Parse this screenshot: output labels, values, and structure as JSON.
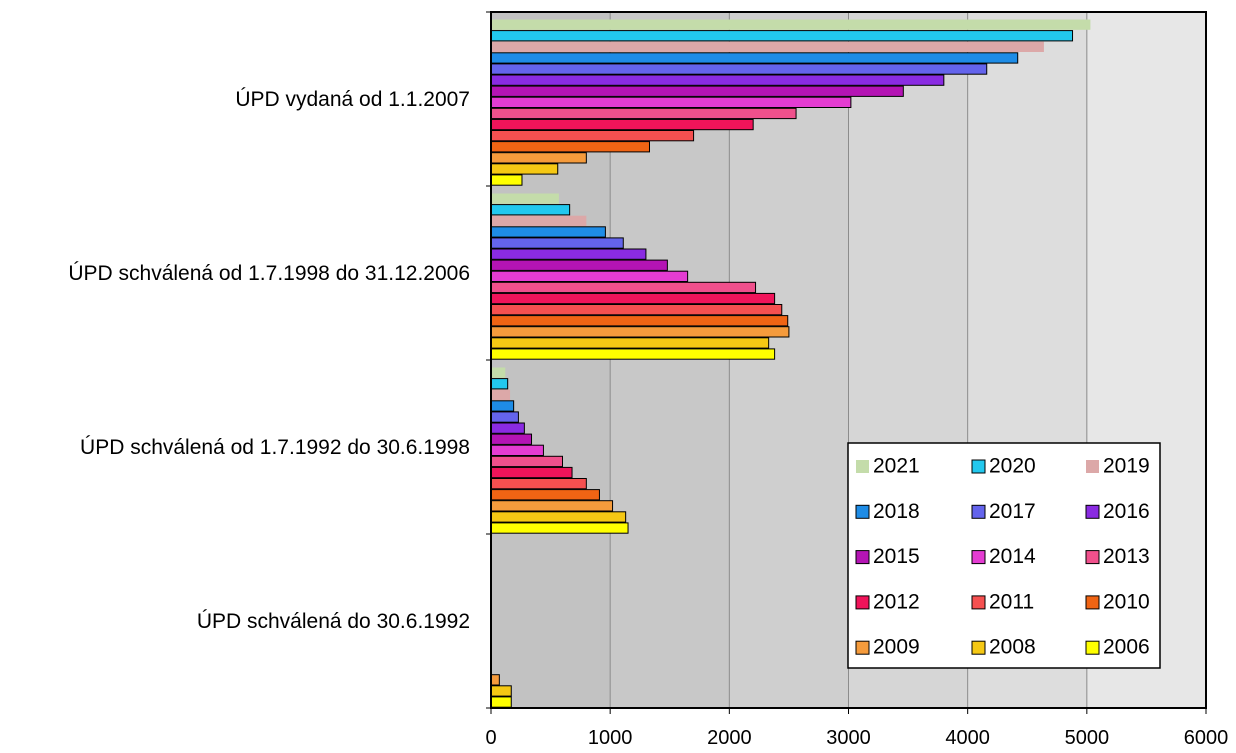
{
  "chart_data": {
    "type": "bar",
    "orientation": "horizontal",
    "categories": [
      "ÚPD vydaná od 1.1.2007",
      "ÚPD schválená od 1.7.1998 do 31.12.2006",
      "ÚPD schválená od 1.7.1992 do 30.6.1998",
      "ÚPD schválená do 30.6.1992"
    ],
    "xlim": [
      0,
      6000
    ],
    "x_ticks": [
      "0",
      "1000",
      "2000",
      "3000",
      "4000",
      "5000",
      "6000"
    ],
    "grid": "vertical",
    "legend_position": "bottom-right",
    "series": [
      {
        "name": "2021",
        "color": "#c4dcaa",
        "outline": false,
        "values": [
          5030,
          570,
          120,
          0
        ]
      },
      {
        "name": "2020",
        "color": "#22c8ee",
        "outline": true,
        "values": [
          4880,
          660,
          140,
          0
        ]
      },
      {
        "name": "2019",
        "color": "#dca8a8",
        "outline": false,
        "values": [
          4640,
          800,
          160,
          0
        ]
      },
      {
        "name": "2018",
        "color": "#1e8ce6",
        "outline": true,
        "values": [
          4420,
          960,
          190,
          0
        ]
      },
      {
        "name": "2017",
        "color": "#6464ec",
        "outline": true,
        "values": [
          4160,
          1110,
          230,
          0
        ]
      },
      {
        "name": "2016",
        "color": "#8a2be2",
        "outline": true,
        "values": [
          3800,
          1300,
          280,
          0
        ]
      },
      {
        "name": "2015",
        "color": "#b414b4",
        "outline": true,
        "values": [
          3460,
          1480,
          340,
          0
        ]
      },
      {
        "name": "2014",
        "color": "#e43cd2",
        "outline": true,
        "values": [
          3020,
          1650,
          440,
          0
        ]
      },
      {
        "name": "2013",
        "color": "#f0508c",
        "outline": true,
        "values": [
          2560,
          2220,
          600,
          0
        ]
      },
      {
        "name": "2012",
        "color": "#f0145a",
        "outline": true,
        "values": [
          2200,
          2380,
          680,
          0
        ]
      },
      {
        "name": "2011",
        "color": "#f55050",
        "outline": true,
        "values": [
          1700,
          2440,
          800,
          0
        ]
      },
      {
        "name": "2010",
        "color": "#f06414",
        "outline": true,
        "values": [
          1330,
          2490,
          910,
          0
        ]
      },
      {
        "name": "2009",
        "color": "#f59b3c",
        "outline": true,
        "values": [
          800,
          2500,
          1020,
          70
        ]
      },
      {
        "name": "2008",
        "color": "#f5c814",
        "outline": true,
        "values": [
          560,
          2330,
          1130,
          170
        ]
      },
      {
        "name": "2006",
        "color": "#ffff00",
        "outline": true,
        "values": [
          260,
          2380,
          1150,
          170
        ]
      }
    ],
    "legend_order": [
      "2021",
      "2020",
      "2019",
      "2018",
      "2017",
      "2016",
      "2015",
      "2014",
      "2013",
      "2012",
      "2011",
      "2010",
      "2009",
      "2008",
      "2006"
    ]
  }
}
